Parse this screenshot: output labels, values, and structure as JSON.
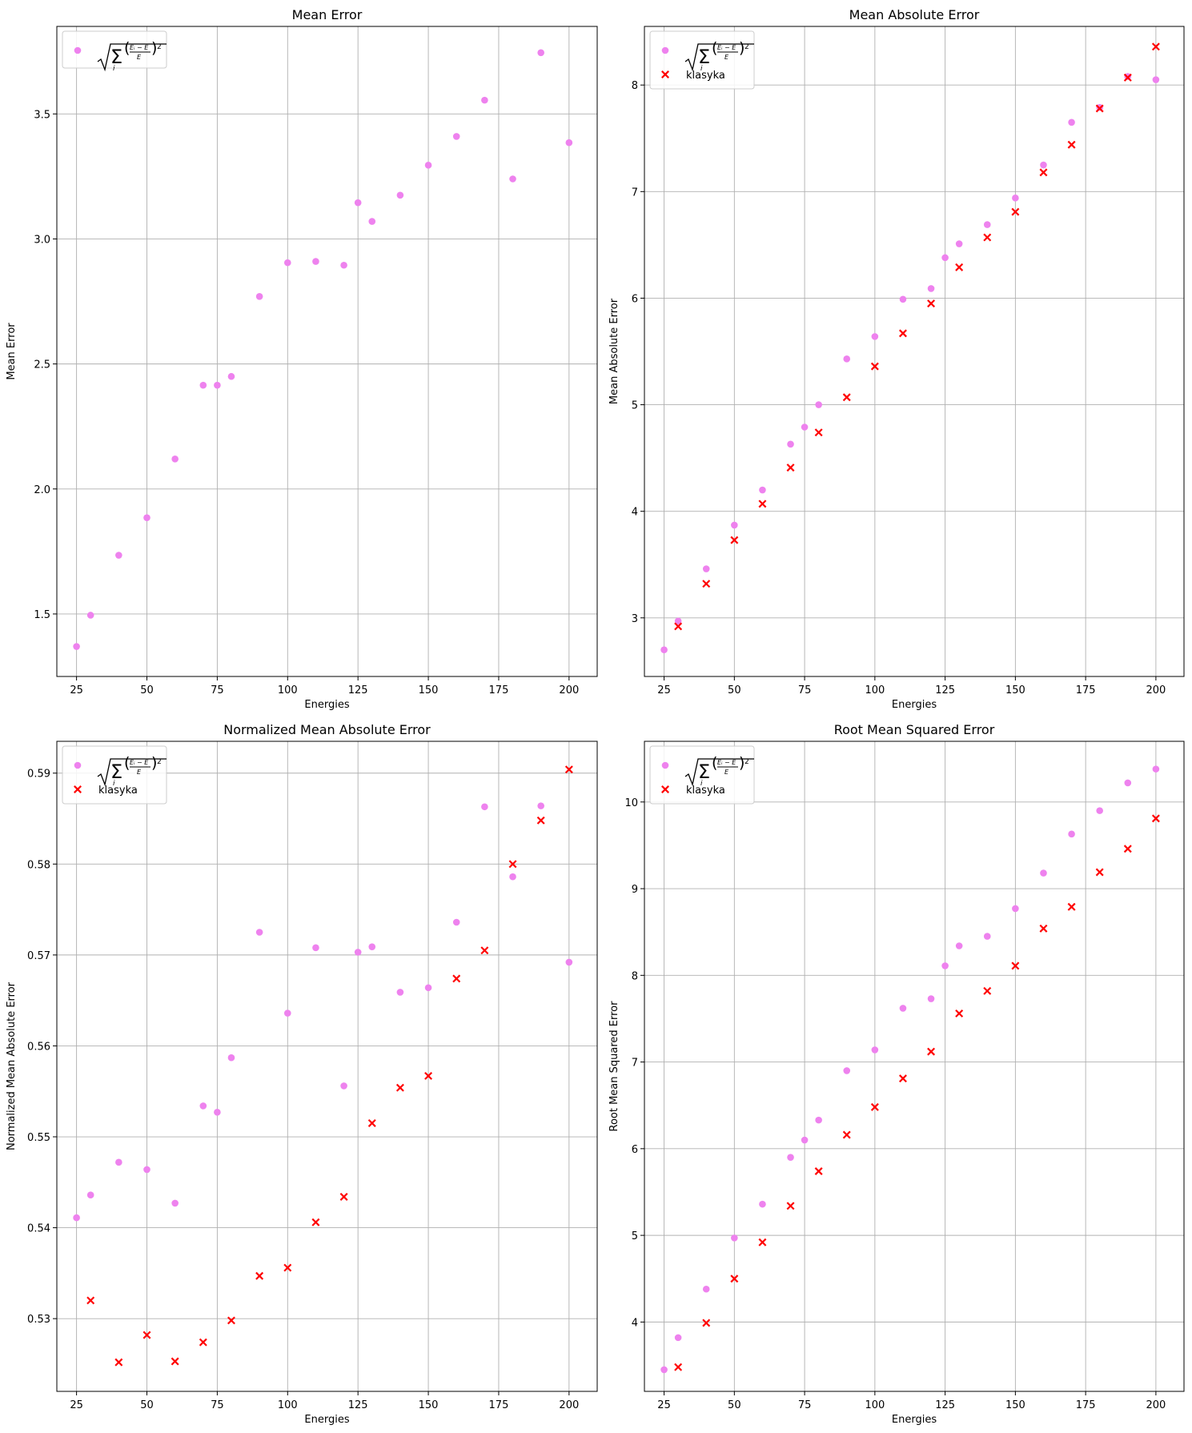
{
  "legend_formula": "√Σᵢ((Eᵢ−E)/E)²",
  "chart_data": [
    {
      "type": "scatter",
      "title": "Mean Error",
      "xlabel": "Energies",
      "ylabel": "Mean Error",
      "xlim": [
        18,
        210
      ],
      "ylim": [
        1.25,
        3.85
      ],
      "xticks": [
        25,
        50,
        75,
        100,
        125,
        150,
        175,
        200
      ],
      "yticks": [
        1.5,
        2.0,
        2.5,
        3.0,
        3.5
      ],
      "ytick_labels": [
        "1.5",
        "2.0",
        "2.5",
        "3.0",
        "3.5"
      ],
      "grid": true,
      "legend_position": "top-left",
      "series": [
        {
          "name": "√Σᵢ((Eᵢ−E)/E)²",
          "marker": "circle",
          "color": "#ee82ee",
          "x": [
            25,
            30,
            40,
            50,
            60,
            70,
            75,
            80,
            90,
            100,
            110,
            120,
            125,
            130,
            140,
            150,
            160,
            170,
            180,
            190,
            200
          ],
          "y": [
            1.37,
            1.495,
            1.735,
            1.885,
            2.12,
            2.415,
            2.415,
            2.45,
            2.77,
            2.905,
            2.91,
            2.895,
            3.145,
            3.07,
            3.175,
            3.295,
            3.41,
            3.555,
            3.24,
            3.745,
            3.385
          ]
        }
      ]
    },
    {
      "type": "scatter",
      "title": "Mean Absolute Error",
      "xlabel": "Energies",
      "ylabel": "Mean Absolute Error",
      "xlim": [
        18,
        210
      ],
      "ylim": [
        2.45,
        8.55
      ],
      "xticks": [
        25,
        50,
        75,
        100,
        125,
        150,
        175,
        200
      ],
      "yticks": [
        3,
        4,
        5,
        6,
        7,
        8
      ],
      "ytick_labels": [
        "3",
        "4",
        "5",
        "6",
        "7",
        "8"
      ],
      "grid": true,
      "legend_position": "top-left",
      "series": [
        {
          "name": "√Σᵢ((Eᵢ−E)/E)²",
          "marker": "circle",
          "color": "#ee82ee",
          "x": [
            25,
            30,
            40,
            50,
            60,
            70,
            75,
            80,
            90,
            100,
            110,
            120,
            125,
            130,
            140,
            150,
            160,
            170,
            180,
            190,
            200
          ],
          "y": [
            2.7,
            2.97,
            3.46,
            3.87,
            4.2,
            4.63,
            4.79,
            5.0,
            5.43,
            5.64,
            5.99,
            6.09,
            6.38,
            6.51,
            6.69,
            6.94,
            7.25,
            7.65,
            7.79,
            8.08,
            8.05
          ]
        },
        {
          "name": "klasyka",
          "marker": "x",
          "color": "#ff0000",
          "x": [
            30,
            40,
            50,
            60,
            70,
            80,
            90,
            100,
            110,
            120,
            130,
            140,
            150,
            160,
            170,
            180,
            190,
            200
          ],
          "y": [
            2.92,
            3.32,
            3.73,
            4.07,
            4.41,
            4.74,
            5.07,
            5.36,
            5.67,
            5.95,
            6.29,
            6.57,
            6.81,
            7.18,
            7.44,
            7.78,
            8.07,
            8.36
          ]
        }
      ]
    },
    {
      "type": "scatter",
      "title": "Normalized Mean Absolute Error",
      "xlabel": "Energies",
      "ylabel": "Normalized Mean Absolute Error",
      "xlim": [
        18,
        210
      ],
      "ylim": [
        0.522,
        0.5935
      ],
      "xticks": [
        25,
        50,
        75,
        100,
        125,
        150,
        175,
        200
      ],
      "yticks": [
        0.53,
        0.54,
        0.55,
        0.56,
        0.57,
        0.58,
        0.59
      ],
      "ytick_labels": [
        "0.53",
        "0.54",
        "0.55",
        "0.56",
        "0.57",
        "0.58",
        "0.59"
      ],
      "grid": true,
      "legend_position": "top-left",
      "series": [
        {
          "name": "√Σᵢ((Eᵢ−E)/E)²",
          "marker": "circle",
          "color": "#ee82ee",
          "x": [
            25,
            30,
            40,
            50,
            60,
            70,
            75,
            80,
            90,
            100,
            110,
            120,
            125,
            130,
            140,
            150,
            160,
            170,
            180,
            190,
            200
          ],
          "y": [
            0.5411,
            0.5436,
            0.5472,
            0.5464,
            0.5427,
            0.5534,
            0.5527,
            0.5587,
            0.5725,
            0.5636,
            0.5708,
            0.5556,
            0.5703,
            0.5709,
            0.5659,
            0.5664,
            0.5736,
            0.5863,
            0.5786,
            0.5864,
            0.5692
          ]
        },
        {
          "name": "klasyka",
          "marker": "x",
          "color": "#ff0000",
          "x": [
            30,
            40,
            50,
            60,
            70,
            80,
            90,
            100,
            110,
            120,
            130,
            140,
            150,
            160,
            170,
            180,
            190,
            200
          ],
          "y": [
            0.532,
            0.5252,
            0.5282,
            0.5253,
            0.5274,
            0.5298,
            0.5347,
            0.5356,
            0.5406,
            0.5434,
            0.5515,
            0.5554,
            0.5567,
            0.5674,
            0.5705,
            0.58,
            0.5848,
            0.5904
          ]
        }
      ]
    },
    {
      "type": "scatter",
      "title": "Root Mean Squared Error",
      "xlabel": "Energies",
      "ylabel": "Root Mean Squared Error",
      "xlim": [
        18,
        210
      ],
      "ylim": [
        3.2,
        10.7
      ],
      "xticks": [
        25,
        50,
        75,
        100,
        125,
        150,
        175,
        200
      ],
      "yticks": [
        4,
        5,
        6,
        7,
        8,
        9,
        10
      ],
      "ytick_labels": [
        "4",
        "5",
        "6",
        "7",
        "8",
        "9",
        "10"
      ],
      "grid": true,
      "legend_position": "top-left",
      "series": [
        {
          "name": "√Σᵢ((Eᵢ−E)/E)²",
          "marker": "circle",
          "color": "#ee82ee",
          "x": [
            25,
            30,
            40,
            50,
            60,
            70,
            75,
            80,
            90,
            100,
            110,
            120,
            125,
            130,
            140,
            150,
            160,
            170,
            180,
            190,
            200
          ],
          "y": [
            3.45,
            3.82,
            4.38,
            4.97,
            5.36,
            5.9,
            6.1,
            6.33,
            6.9,
            7.14,
            7.62,
            7.73,
            8.11,
            8.34,
            8.45,
            8.77,
            9.18,
            9.63,
            9.9,
            10.22,
            10.38
          ]
        },
        {
          "name": "klasyka",
          "marker": "x",
          "color": "#ff0000",
          "x": [
            30,
            40,
            50,
            60,
            70,
            80,
            90,
            100,
            110,
            120,
            130,
            140,
            150,
            160,
            170,
            180,
            190,
            200
          ],
          "y": [
            3.48,
            3.99,
            4.5,
            4.92,
            5.34,
            5.74,
            6.16,
            6.48,
            6.81,
            7.12,
            7.56,
            7.82,
            8.11,
            8.54,
            8.79,
            9.19,
            9.46,
            9.81
          ]
        }
      ]
    }
  ]
}
